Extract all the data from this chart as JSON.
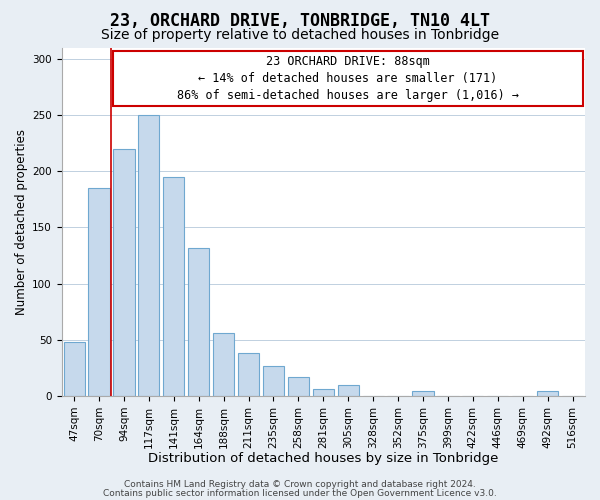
{
  "title": "23, ORCHARD DRIVE, TONBRIDGE, TN10 4LT",
  "subtitle": "Size of property relative to detached houses in Tonbridge",
  "xlabel": "Distribution of detached houses by size in Tonbridge",
  "ylabel": "Number of detached properties",
  "bar_labels": [
    "47sqm",
    "70sqm",
    "94sqm",
    "117sqm",
    "141sqm",
    "164sqm",
    "188sqm",
    "211sqm",
    "235sqm",
    "258sqm",
    "281sqm",
    "305sqm",
    "328sqm",
    "352sqm",
    "375sqm",
    "399sqm",
    "422sqm",
    "446sqm",
    "469sqm",
    "492sqm",
    "516sqm"
  ],
  "bar_heights": [
    48,
    185,
    220,
    250,
    195,
    132,
    56,
    38,
    27,
    17,
    6,
    10,
    0,
    0,
    4,
    0,
    0,
    0,
    0,
    4,
    0
  ],
  "bar_color": "#c6d9ec",
  "bar_edge_color": "#6fa8d0",
  "vline_color": "#cc0000",
  "vline_x": 1.5,
  "annotation_line1": "23 ORCHARD DRIVE: 88sqm",
  "annotation_line2": "← 14% of detached houses are smaller (171)",
  "annotation_line3": "86% of semi-detached houses are larger (1,016) →",
  "annotation_box_color": "#ffffff",
  "annotation_box_edge": "#cc0000",
  "ylim": [
    0,
    310
  ],
  "yticks": [
    0,
    50,
    100,
    150,
    200,
    250,
    300
  ],
  "footer_line1": "Contains HM Land Registry data © Crown copyright and database right 2024.",
  "footer_line2": "Contains public sector information licensed under the Open Government Licence v3.0.",
  "title_fontsize": 12,
  "subtitle_fontsize": 10,
  "xlabel_fontsize": 9.5,
  "ylabel_fontsize": 8.5,
  "tick_fontsize": 7.5,
  "annotation_fontsize": 8.5,
  "footer_fontsize": 6.5,
  "bg_color": "#e8eef4",
  "plot_bg_color": "#ffffff",
  "grid_color": "#c0d0e0"
}
